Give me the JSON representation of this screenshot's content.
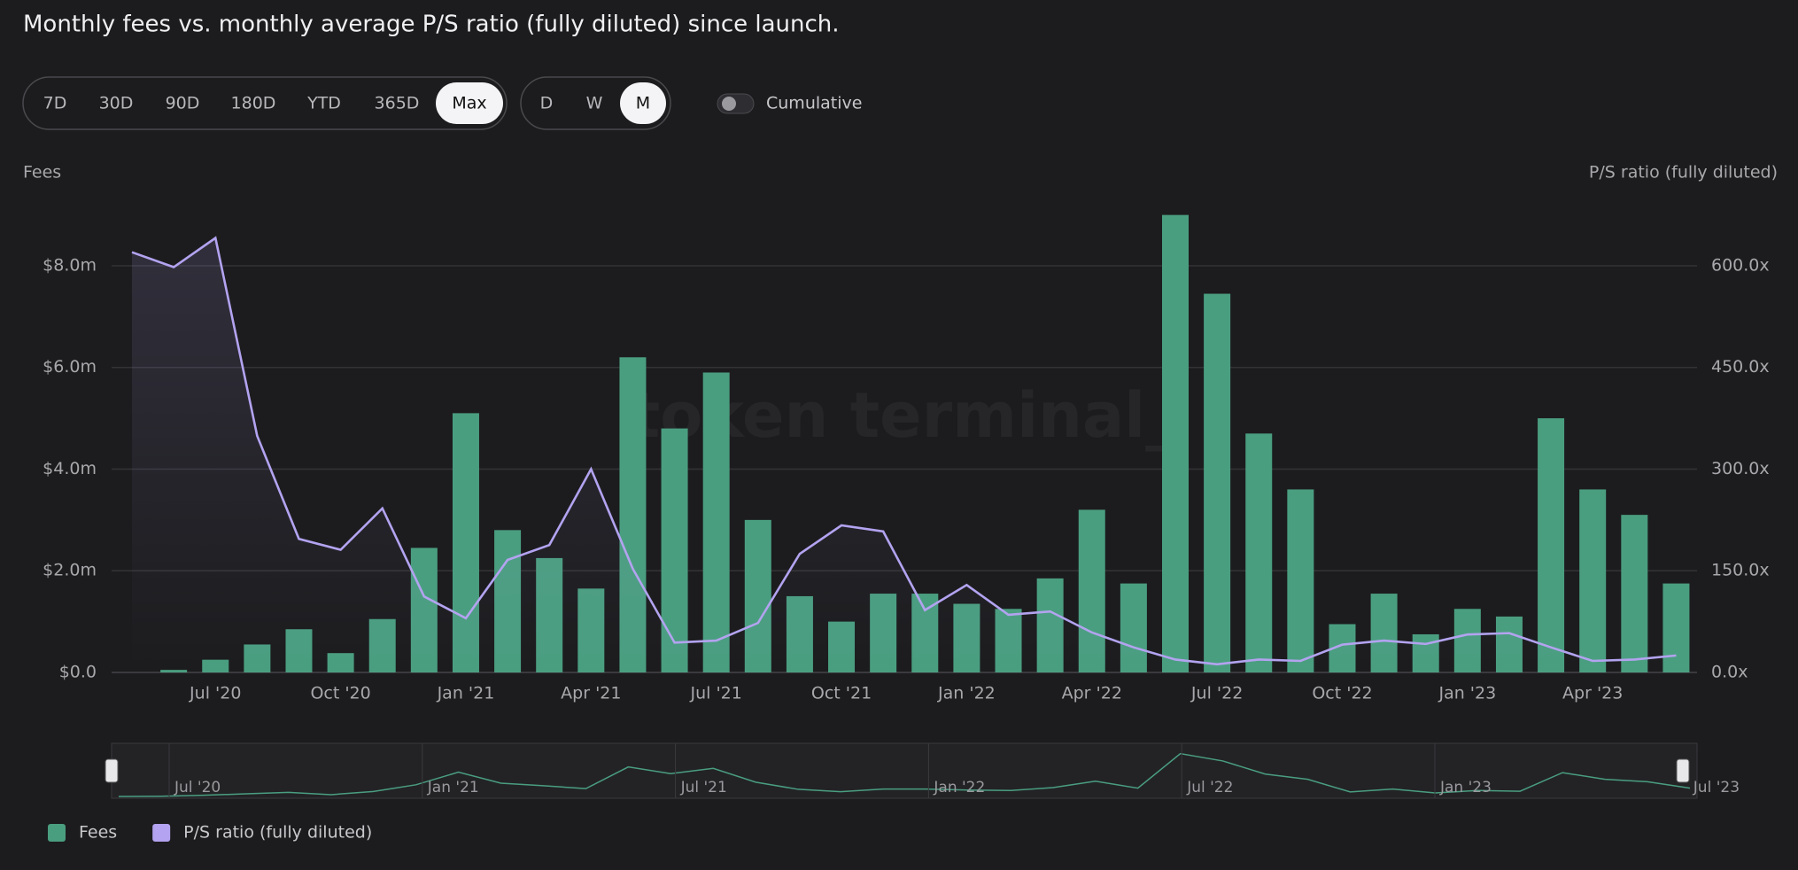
{
  "ui": {
    "ranges": [
      "7D",
      "30D",
      "90D",
      "180D",
      "YTD",
      "365D",
      "Max"
    ],
    "active_range": "Max",
    "granularity": [
      "D",
      "W",
      "M"
    ],
    "active_granularity": "M",
    "toggle_label": "Cumulative",
    "cumulative": false
  },
  "chart_data": {
    "type": "bar_line",
    "title": "Monthly fees vs. monthly average P/S ratio (fully diluted) since launch.",
    "watermark": "token terminal_",
    "y_label": "Fees",
    "y2_label": "P/S ratio (fully diluted)",
    "categories": [
      null,
      null,
      "Jul '20",
      null,
      null,
      "Oct '20",
      null,
      null,
      "Jan '21",
      null,
      null,
      "Apr '21",
      null,
      null,
      "Jul '21",
      null,
      null,
      "Oct '21",
      null,
      null,
      "Jan '22",
      null,
      null,
      "Apr '22",
      null,
      null,
      "Jul '22",
      null,
      null,
      "Oct '22",
      null,
      null,
      "Jan '23",
      null,
      null,
      "Apr '23",
      null,
      null
    ],
    "series": [
      {
        "name": "Fees",
        "color": "#4a9e80",
        "type": "bar",
        "axis": "y",
        "values": [
          0,
          50000,
          250000,
          550000,
          850000,
          380000,
          1050000,
          2450000,
          5100000,
          2800000,
          2250000,
          1650000,
          6200000,
          4800000,
          5900000,
          3000000,
          1500000,
          1000000,
          1550000,
          1550000,
          1350000,
          1250000,
          1850000,
          3200000,
          1750000,
          9000000,
          7450000,
          4700000,
          3600000,
          950000,
          1550000,
          750000,
          1250000,
          1100000,
          5000000,
          3600000,
          3100000,
          1750000
        ]
      },
      {
        "name": "P/S ratio (fully diluted)",
        "color": "#b3a3f0",
        "type": "line",
        "axis": "y2",
        "values": [
          620,
          598,
          641,
          349,
          197,
          181,
          242,
          112,
          80,
          166,
          188,
          300,
          153,
          44,
          47,
          73,
          175,
          217,
          208,
          92,
          129,
          85,
          90,
          59,
          37,
          19,
          12,
          19,
          17,
          41,
          47,
          42,
          56,
          58,
          37,
          17,
          19,
          25
        ]
      }
    ],
    "ylim": [
      0,
      9300000
    ],
    "yticks": [
      {
        "value": 0,
        "label": "$0.0"
      },
      {
        "value": 2000000,
        "label": "$2.0m"
      },
      {
        "value": 4000000,
        "label": "$4.0m"
      },
      {
        "value": 6000000,
        "label": "$6.0m"
      },
      {
        "value": 8000000,
        "label": "$8.0m"
      }
    ],
    "y2lim": [
      0,
      697.5
    ],
    "y2ticks": [
      {
        "value": 0,
        "label": "0.0x"
      },
      {
        "value": 150,
        "label": "150.0x"
      },
      {
        "value": 300,
        "label": "300.0x"
      },
      {
        "value": 450,
        "label": "450.0x"
      },
      {
        "value": 600,
        "label": "600.0x"
      }
    ],
    "grid": true,
    "legend": "bottom-left"
  },
  "navigator": {
    "labels": [
      "Jul '20",
      "Jan '21",
      "Jul '21",
      "Jan '22",
      "Jul '22",
      "Jan '23",
      "Jul '23"
    ]
  }
}
